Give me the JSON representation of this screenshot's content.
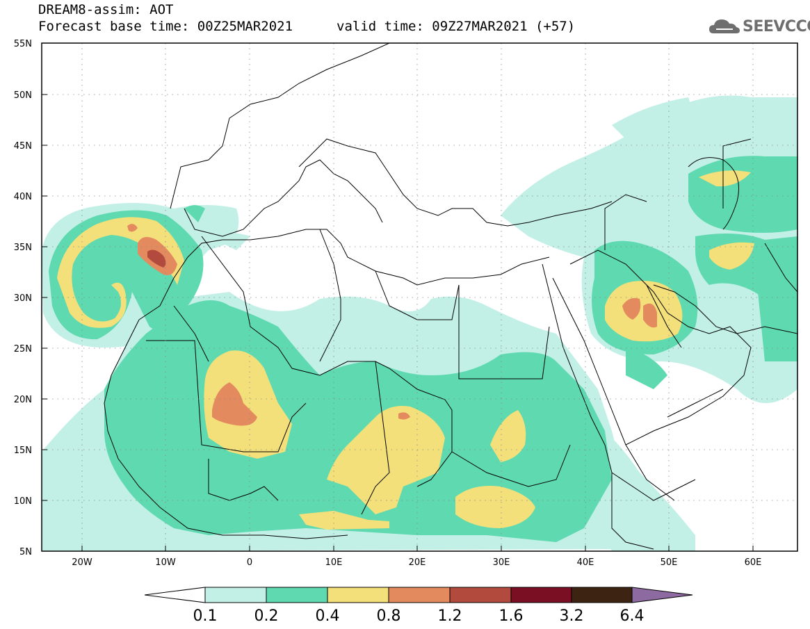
{
  "title": {
    "line1": "DREAM8-assim: AOT",
    "line2": "Forecast base time: 00Z25MAR2021",
    "valid": "valid time: 09Z27MAR2021 (+57)"
  },
  "logo": {
    "text": "SEEVCCC",
    "icon": "cloud-icon"
  },
  "axes": {
    "lat_labels": [
      "55N",
      "50N",
      "45N",
      "40N",
      "35N",
      "30N",
      "25N",
      "20N",
      "15N",
      "10N",
      "5N"
    ],
    "lon_labels": [
      "20W",
      "10W",
      "0",
      "10E",
      "20E",
      "30E",
      "40E",
      "50E",
      "60E"
    ],
    "lat_range": [
      5,
      55
    ],
    "lon_range": [
      -25,
      65
    ]
  },
  "colorbar": {
    "labels": [
      "0.1",
      "0.2",
      "0.4",
      "0.8",
      "1.2",
      "1.6",
      "3.2",
      "6.4"
    ],
    "colors": [
      "#ffffff",
      "#c2efe6",
      "#5fd9b0",
      "#f3e07a",
      "#e48a5f",
      "#b24a3d",
      "#7a0f24",
      "#3d2412",
      "#8d6aa0"
    ]
  },
  "colors": {
    "aot_0_1": "#c2efe6",
    "aot_0_2": "#5fd9b0",
    "aot_0_4": "#f3e07a",
    "aot_0_8": "#e48a5f",
    "aot_1_2": "#b24a3d",
    "aot_1_6": "#7a0f24"
  }
}
